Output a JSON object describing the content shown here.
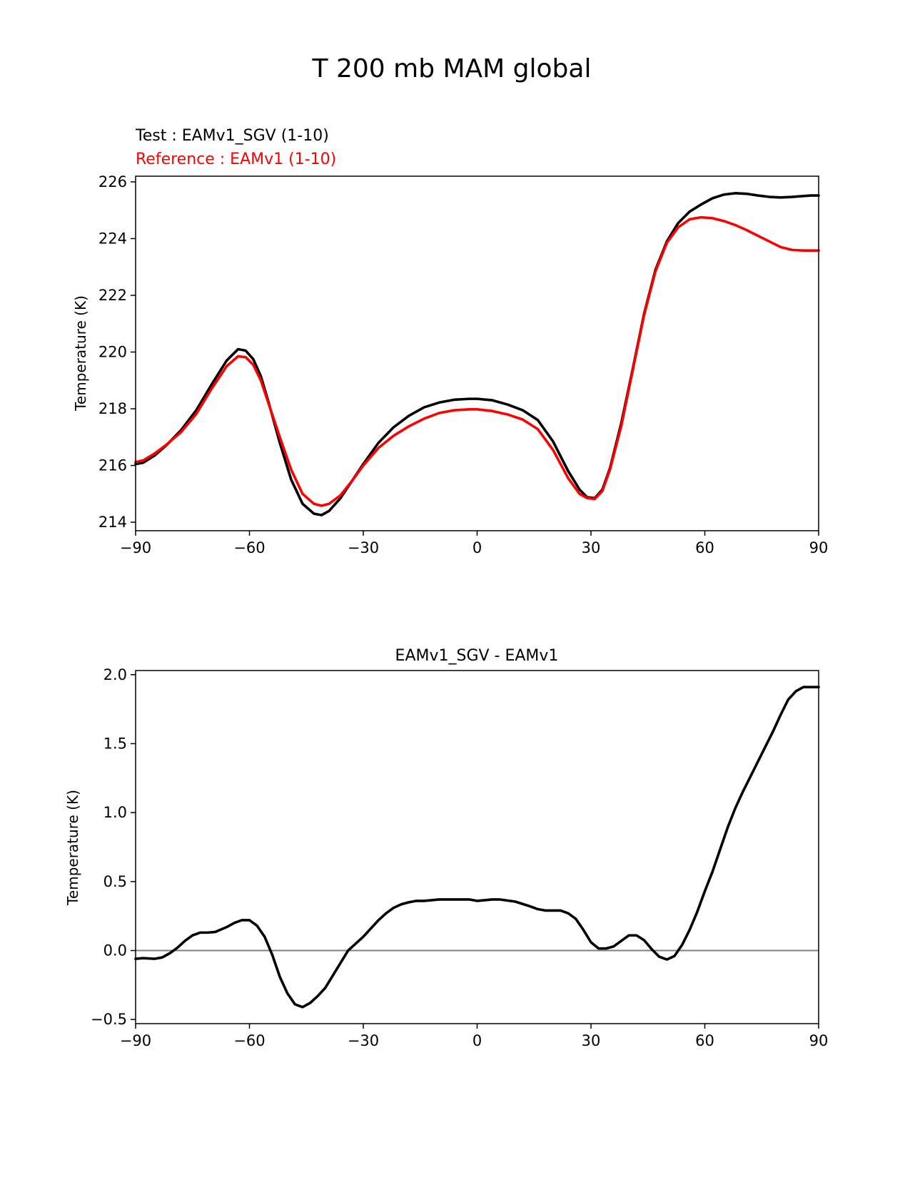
{
  "suptitle": "T 200 mb MAM global",
  "chart_data": [
    {
      "type": "line",
      "title_test": "Test : EAMv1_SGV (1-10)",
      "title_ref": "Reference : EAMv1 (1-10)",
      "xlabel": "",
      "ylabel": "Temperature (K)",
      "xlim": [
        -90,
        90
      ],
      "ylim": [
        213.7,
        226.2
      ],
      "xticks": [
        -90,
        -60,
        -30,
        0,
        30,
        60,
        90
      ],
      "xtick_labels": [
        "−90",
        "−60",
        "−30",
        "0",
        "30",
        "60",
        "90"
      ],
      "yticks": [
        214,
        216,
        218,
        220,
        222,
        224,
        226
      ],
      "ytick_labels": [
        "214",
        "216",
        "218",
        "220",
        "222",
        "224",
        "226"
      ],
      "series": [
        {
          "name": "EAMv1_SGV (1-10)",
          "color": "#000000",
          "x": [
            -90,
            -88,
            -85,
            -82,
            -78,
            -74,
            -70,
            -66,
            -63,
            -61,
            -59,
            -57,
            -55,
            -52,
            -49,
            -46,
            -43,
            -41,
            -39,
            -36,
            -33,
            -30,
            -26,
            -22,
            -18,
            -14,
            -10,
            -6,
            -2,
            0,
            4,
            8,
            12,
            16,
            20,
            24,
            27,
            29,
            31,
            33,
            35,
            38,
            41,
            44,
            47,
            50,
            53,
            56,
            59,
            62,
            65,
            68,
            71,
            74,
            77,
            80,
            83,
            86,
            88,
            90
          ],
          "y": [
            216.05,
            216.1,
            216.35,
            216.7,
            217.25,
            217.95,
            218.85,
            219.7,
            220.1,
            220.05,
            219.75,
            219.15,
            218.25,
            216.8,
            215.5,
            214.65,
            214.3,
            214.25,
            214.4,
            214.85,
            215.45,
            216.05,
            216.8,
            217.35,
            217.75,
            218.05,
            218.22,
            218.32,
            218.35,
            218.35,
            218.3,
            218.15,
            217.95,
            217.6,
            216.85,
            215.8,
            215.15,
            214.88,
            214.85,
            215.15,
            215.9,
            217.5,
            219.4,
            221.35,
            222.9,
            223.9,
            224.55,
            224.95,
            225.2,
            225.42,
            225.55,
            225.6,
            225.58,
            225.52,
            225.47,
            225.45,
            225.47,
            225.5,
            225.52,
            225.52
          ]
        },
        {
          "name": "EAMv1 (1-10)",
          "color": "#ff0000",
          "x": [
            -90,
            -88,
            -85,
            -82,
            -78,
            -74,
            -70,
            -66,
            -63,
            -61,
            -59,
            -57,
            -55,
            -52,
            -49,
            -46,
            -43,
            -41,
            -39,
            -36,
            -33,
            -30,
            -26,
            -22,
            -18,
            -14,
            -10,
            -6,
            -2,
            0,
            4,
            8,
            12,
            16,
            20,
            24,
            27,
            29,
            31,
            33,
            35,
            38,
            41,
            44,
            47,
            50,
            53,
            56,
            59,
            62,
            65,
            68,
            71,
            74,
            77,
            80,
            83,
            86,
            88,
            90
          ],
          "y": [
            216.12,
            216.18,
            216.42,
            216.72,
            217.18,
            217.82,
            218.7,
            219.5,
            219.85,
            219.82,
            219.55,
            219.0,
            218.2,
            217.0,
            215.85,
            215.0,
            214.65,
            214.58,
            214.65,
            214.95,
            215.45,
            216.0,
            216.62,
            217.05,
            217.38,
            217.65,
            217.85,
            217.95,
            217.98,
            217.98,
            217.92,
            217.8,
            217.62,
            217.28,
            216.55,
            215.55,
            215.0,
            214.85,
            214.82,
            215.1,
            215.85,
            217.4,
            219.35,
            221.3,
            222.85,
            223.85,
            224.4,
            224.68,
            224.75,
            224.72,
            224.62,
            224.48,
            224.3,
            224.1,
            223.9,
            223.7,
            223.6,
            223.58,
            223.58,
            223.58
          ]
        }
      ]
    },
    {
      "type": "line",
      "title": "EAMv1_SGV - EAMv1",
      "xlabel": "",
      "ylabel": "Temperature (K)",
      "xlim": [
        -90,
        90
      ],
      "ylim": [
        -0.53,
        2.03
      ],
      "xticks": [
        -90,
        -60,
        -30,
        0,
        30,
        60,
        90
      ],
      "xtick_labels": [
        "−90",
        "−60",
        "−30",
        "0",
        "30",
        "60",
        "90"
      ],
      "yticks": [
        -0.5,
        0.0,
        0.5,
        1.0,
        1.5,
        2.0
      ],
      "ytick_labels": [
        "−0.5",
        "0.0",
        "0.5",
        "1.0",
        "1.5",
        "2.0"
      ],
      "zero_line": {
        "value": 0.0,
        "color": "#808080"
      },
      "series": [
        {
          "name": "EAMv1_SGV - EAMv1",
          "color": "#000000",
          "x": [
            -90,
            -88,
            -85,
            -83,
            -81,
            -79,
            -77,
            -75,
            -73,
            -71,
            -69,
            -66,
            -64,
            -62,
            -60,
            -58,
            -56,
            -54,
            -52,
            -50,
            -48,
            -46,
            -44,
            -42,
            -40,
            -38,
            -36,
            -34,
            -32,
            -30,
            -28,
            -26,
            -24,
            -22,
            -20,
            -18,
            -16,
            -14,
            -10,
            -6,
            -4,
            -2,
            0,
            2,
            4,
            6,
            10,
            14,
            16,
            18,
            22,
            24,
            26,
            28,
            30,
            32,
            34,
            36,
            38,
            40,
            42,
            44,
            46,
            48,
            50,
            52,
            54,
            56,
            58,
            60,
            62,
            64,
            66,
            68,
            70,
            72,
            74,
            76,
            78,
            80,
            82,
            84,
            86,
            88,
            90
          ],
          "y": [
            -0.06,
            -0.055,
            -0.06,
            -0.05,
            -0.02,
            0.02,
            0.07,
            0.11,
            0.13,
            0.13,
            0.135,
            0.17,
            0.2,
            0.22,
            0.22,
            0.18,
            0.1,
            -0.03,
            -0.19,
            -0.31,
            -0.39,
            -0.41,
            -0.38,
            -0.33,
            -0.27,
            -0.18,
            -0.09,
            0.0,
            0.05,
            0.1,
            0.16,
            0.22,
            0.27,
            0.31,
            0.335,
            0.35,
            0.36,
            0.36,
            0.37,
            0.37,
            0.37,
            0.37,
            0.36,
            0.365,
            0.37,
            0.37,
            0.355,
            0.32,
            0.3,
            0.29,
            0.29,
            0.27,
            0.23,
            0.15,
            0.06,
            0.015,
            0.015,
            0.03,
            0.07,
            0.11,
            0.11,
            0.075,
            0.01,
            -0.045,
            -0.065,
            -0.04,
            0.04,
            0.15,
            0.28,
            0.43,
            0.57,
            0.73,
            0.89,
            1.03,
            1.15,
            1.26,
            1.37,
            1.48,
            1.59,
            1.71,
            1.82,
            1.88,
            1.91,
            1.91,
            1.91
          ]
        }
      ]
    }
  ]
}
